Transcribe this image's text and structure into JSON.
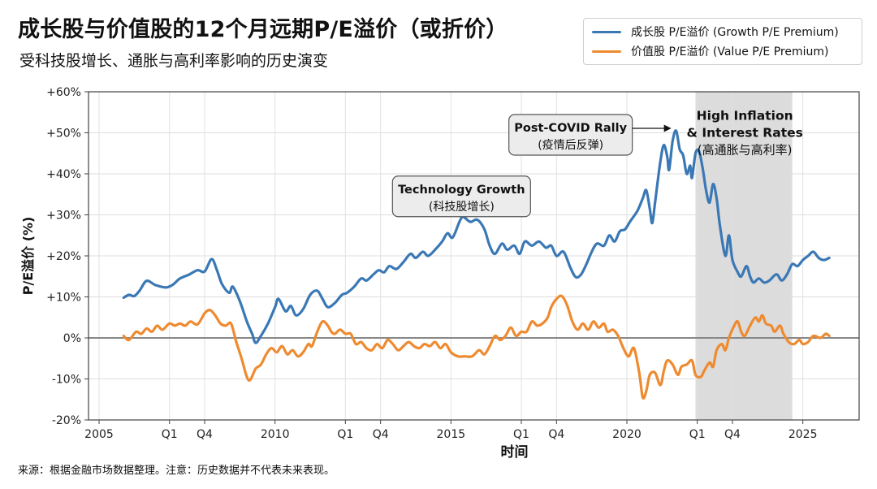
{
  "title": "成长股与价值股的12个月远期P/E溢价（或折价）",
  "subtitle": "受科技股增长、通胀与高利率影响的历史演变",
  "source": "来源：根据金融市场数据整理。注意：历史数据并不代表未来表现。",
  "colors": {
    "growth": "#3a78b5",
    "value": "#ee8a2f",
    "shade": "#dcdcdc",
    "zero": "#888888"
  },
  "chart_data": {
    "type": "line",
    "xlabel": "时间",
    "ylabel": "P/E溢价 (%)",
    "xlim": [
      2004.7,
      2026.6
    ],
    "ylim": [
      -20,
      60
    ],
    "y_ticks": [
      {
        "value": -20,
        "label": "-20%"
      },
      {
        "value": -10,
        "label": "-10%"
      },
      {
        "value": 0,
        "label": "0%"
      },
      {
        "value": 10,
        "label": "+10%"
      },
      {
        "value": 20,
        "label": "+20%"
      },
      {
        "value": 30,
        "label": "+30%"
      },
      {
        "value": 40,
        "label": "+40%"
      },
      {
        "value": 50,
        "label": "+50%"
      },
      {
        "value": 60,
        "label": "+60%"
      }
    ],
    "x_ticks": [
      {
        "x": 2005,
        "label": "2005"
      },
      {
        "x": 2007,
        "label": "Q1"
      },
      {
        "x": 2008,
        "label": "Q4"
      },
      {
        "x": 2010,
        "label": "2010"
      },
      {
        "x": 2012,
        "label": "Q1"
      },
      {
        "x": 2013,
        "label": "Q4"
      },
      {
        "x": 2015,
        "label": "2015"
      },
      {
        "x": 2017,
        "label": "Q1"
      },
      {
        "x": 2018,
        "label": "Q4"
      },
      {
        "x": 2020,
        "label": "2020"
      },
      {
        "x": 2022,
        "label": "Q1"
      },
      {
        "x": 2023,
        "label": "Q4"
      },
      {
        "x": 2025,
        "label": "2025"
      }
    ],
    "shaded_region": {
      "x0": 2021.95,
      "x1": 2024.7
    },
    "series": [
      {
        "name": "成长股 P/E溢价 (Growth P/E Premium)",
        "key": "growth",
        "points": [
          [
            2005.7,
            9.8
          ],
          [
            2005.85,
            10.5
          ],
          [
            2006.0,
            10.2
          ],
          [
            2006.15,
            11.5
          ],
          [
            2006.35,
            13.9
          ],
          [
            2006.6,
            12.9
          ],
          [
            2006.9,
            12.3
          ],
          [
            2007.1,
            13.0
          ],
          [
            2007.3,
            14.5
          ],
          [
            2007.55,
            15.4
          ],
          [
            2007.8,
            16.5
          ],
          [
            2008.0,
            16.2
          ],
          [
            2008.2,
            19.2
          ],
          [
            2008.35,
            16.5
          ],
          [
            2008.5,
            13.0
          ],
          [
            2008.7,
            11.0
          ],
          [
            2008.8,
            12.5
          ],
          [
            2009.0,
            9.0
          ],
          [
            2009.2,
            4.0
          ],
          [
            2009.35,
            1.0
          ],
          [
            2009.45,
            -1.2
          ],
          [
            2009.6,
            0.5
          ],
          [
            2009.8,
            3.5
          ],
          [
            2010.0,
            7.5
          ],
          [
            2010.1,
            9.5
          ],
          [
            2010.3,
            6.5
          ],
          [
            2010.45,
            7.8
          ],
          [
            2010.6,
            5.5
          ],
          [
            2010.8,
            7.0
          ],
          [
            2011.0,
            10.5
          ],
          [
            2011.2,
            11.5
          ],
          [
            2011.35,
            9.5
          ],
          [
            2011.5,
            7.5
          ],
          [
            2011.7,
            8.5
          ],
          [
            2011.9,
            10.5
          ],
          [
            2012.05,
            11.0
          ],
          [
            2012.25,
            12.5
          ],
          [
            2012.45,
            14.5
          ],
          [
            2012.6,
            14.0
          ],
          [
            2012.8,
            15.5
          ],
          [
            2012.95,
            16.5
          ],
          [
            2013.1,
            16.0
          ],
          [
            2013.25,
            17.5
          ],
          [
            2013.45,
            16.8
          ],
          [
            2013.65,
            18.5
          ],
          [
            2013.85,
            20.5
          ],
          [
            2014.0,
            19.5
          ],
          [
            2014.2,
            21.0
          ],
          [
            2014.35,
            20.0
          ],
          [
            2014.55,
            21.5
          ],
          [
            2014.75,
            23.5
          ],
          [
            2014.9,
            25.5
          ],
          [
            2015.05,
            24.5
          ],
          [
            2015.25,
            28.5
          ],
          [
            2015.35,
            29.5
          ],
          [
            2015.55,
            28.3
          ],
          [
            2015.75,
            28.8
          ],
          [
            2015.95,
            26.5
          ],
          [
            2016.1,
            22.5
          ],
          [
            2016.25,
            20.5
          ],
          [
            2016.45,
            23.0
          ],
          [
            2016.6,
            21.5
          ],
          [
            2016.8,
            22.5
          ],
          [
            2016.95,
            20.5
          ],
          [
            2017.1,
            23.5
          ],
          [
            2017.3,
            22.5
          ],
          [
            2017.5,
            23.5
          ],
          [
            2017.7,
            22.0
          ],
          [
            2017.85,
            22.5
          ],
          [
            2018.0,
            20.0
          ],
          [
            2018.2,
            21.0
          ],
          [
            2018.4,
            17.0
          ],
          [
            2018.55,
            14.8
          ],
          [
            2018.7,
            15.5
          ],
          [
            2018.85,
            18.0
          ],
          [
            2019.0,
            21.0
          ],
          [
            2019.15,
            23.0
          ],
          [
            2019.35,
            22.5
          ],
          [
            2019.5,
            25.0
          ],
          [
            2019.65,
            23.5
          ],
          [
            2019.8,
            26.0
          ],
          [
            2019.95,
            26.5
          ],
          [
            2020.1,
            28.5
          ],
          [
            2020.3,
            31.0
          ],
          [
            2020.45,
            34.0
          ],
          [
            2020.55,
            36.0
          ],
          [
            2020.65,
            31.5
          ],
          [
            2020.72,
            28.0
          ],
          [
            2020.8,
            33.0
          ],
          [
            2020.95,
            43.0
          ],
          [
            2021.05,
            47.0
          ],
          [
            2021.15,
            44.0
          ],
          [
            2021.2,
            41.0
          ],
          [
            2021.3,
            48.0
          ],
          [
            2021.4,
            50.5
          ],
          [
            2021.5,
            46.0
          ],
          [
            2021.6,
            44.5
          ],
          [
            2021.7,
            40.0
          ],
          [
            2021.8,
            42.0
          ],
          [
            2021.85,
            39.0
          ],
          [
            2021.95,
            45.0
          ],
          [
            2022.05,
            45.5
          ],
          [
            2022.15,
            41.5
          ],
          [
            2022.25,
            36.0
          ],
          [
            2022.35,
            33.0
          ],
          [
            2022.45,
            37.5
          ],
          [
            2022.55,
            34.0
          ],
          [
            2022.65,
            27.0
          ],
          [
            2022.8,
            20.0
          ],
          [
            2022.9,
            25.0
          ],
          [
            2023.0,
            19.0
          ],
          [
            2023.15,
            16.0
          ],
          [
            2023.25,
            15.0
          ],
          [
            2023.4,
            17.5
          ],
          [
            2023.5,
            15.0
          ],
          [
            2023.6,
            13.5
          ],
          [
            2023.75,
            14.5
          ],
          [
            2023.9,
            13.5
          ],
          [
            2024.05,
            14.0
          ],
          [
            2024.25,
            15.5
          ],
          [
            2024.4,
            14.0
          ],
          [
            2024.55,
            15.5
          ],
          [
            2024.7,
            18.0
          ],
          [
            2024.85,
            17.5
          ],
          [
            2025.0,
            19.0
          ],
          [
            2025.15,
            20.0
          ],
          [
            2025.3,
            21.0
          ],
          [
            2025.45,
            19.5
          ],
          [
            2025.6,
            19.0
          ],
          [
            2025.75,
            19.5
          ]
        ]
      },
      {
        "name": "价值股 P/E溢价 (Value P/E Premium)",
        "key": "value",
        "points": [
          [
            2005.7,
            0.5
          ],
          [
            2005.85,
            -0.5
          ],
          [
            2006.05,
            1.5
          ],
          [
            2006.2,
            1.0
          ],
          [
            2006.35,
            2.3
          ],
          [
            2006.5,
            1.5
          ],
          [
            2006.65,
            3.0
          ],
          [
            2006.8,
            2.0
          ],
          [
            2007.0,
            3.5
          ],
          [
            2007.15,
            3.0
          ],
          [
            2007.3,
            3.5
          ],
          [
            2007.45,
            3.0
          ],
          [
            2007.6,
            4.0
          ],
          [
            2007.8,
            3.3
          ],
          [
            2008.0,
            6.0
          ],
          [
            2008.15,
            6.8
          ],
          [
            2008.3,
            5.5
          ],
          [
            2008.45,
            3.5
          ],
          [
            2008.6,
            3.0
          ],
          [
            2008.75,
            3.5
          ],
          [
            2008.9,
            -1.0
          ],
          [
            2009.05,
            -5.0
          ],
          [
            2009.2,
            -9.5
          ],
          [
            2009.3,
            -10.2
          ],
          [
            2009.45,
            -7.5
          ],
          [
            2009.6,
            -6.5
          ],
          [
            2009.75,
            -4.0
          ],
          [
            2009.9,
            -2.5
          ],
          [
            2010.05,
            -3.5
          ],
          [
            2010.2,
            -2.0
          ],
          [
            2010.35,
            -4.0
          ],
          [
            2010.5,
            -3.0
          ],
          [
            2010.65,
            -4.5
          ],
          [
            2010.8,
            -3.5
          ],
          [
            2010.95,
            -1.5
          ],
          [
            2011.05,
            -2.0
          ],
          [
            2011.2,
            1.5
          ],
          [
            2011.35,
            4.0
          ],
          [
            2011.5,
            3.0
          ],
          [
            2011.6,
            1.5
          ],
          [
            2011.7,
            1.0
          ],
          [
            2011.85,
            2.0
          ],
          [
            2012.0,
            1.0
          ],
          [
            2012.15,
            1.0
          ],
          [
            2012.3,
            -1.5
          ],
          [
            2012.45,
            -1.0
          ],
          [
            2012.6,
            -2.5
          ],
          [
            2012.75,
            -3.0
          ],
          [
            2012.9,
            -1.5
          ],
          [
            2013.05,
            -2.5
          ],
          [
            2013.2,
            -0.5
          ],
          [
            2013.35,
            -1.5
          ],
          [
            2013.5,
            -3.0
          ],
          [
            2013.65,
            -2.0
          ],
          [
            2013.8,
            -1.0
          ],
          [
            2013.95,
            -2.0
          ],
          [
            2014.1,
            -2.5
          ],
          [
            2014.25,
            -1.5
          ],
          [
            2014.4,
            -2.0
          ],
          [
            2014.55,
            -1.0
          ],
          [
            2014.7,
            -2.5
          ],
          [
            2014.85,
            -1.5
          ],
          [
            2015.0,
            -3.5
          ],
          [
            2015.2,
            -4.5
          ],
          [
            2015.4,
            -4.5
          ],
          [
            2015.6,
            -4.5
          ],
          [
            2015.8,
            -3.0
          ],
          [
            2015.95,
            -4.0
          ],
          [
            2016.1,
            -2.0
          ],
          [
            2016.25,
            0.5
          ],
          [
            2016.4,
            -0.5
          ],
          [
            2016.55,
            0.5
          ],
          [
            2016.7,
            2.5
          ],
          [
            2016.85,
            0.5
          ],
          [
            2017.0,
            1.5
          ],
          [
            2017.15,
            1.5
          ],
          [
            2017.3,
            4.0
          ],
          [
            2017.45,
            3.0
          ],
          [
            2017.6,
            3.5
          ],
          [
            2017.75,
            5.0
          ],
          [
            2017.85,
            7.5
          ],
          [
            2018.0,
            9.5
          ],
          [
            2018.15,
            10.2
          ],
          [
            2018.3,
            8.0
          ],
          [
            2018.45,
            4.0
          ],
          [
            2018.6,
            2.0
          ],
          [
            2018.75,
            3.5
          ],
          [
            2018.9,
            2.0
          ],
          [
            2019.05,
            4.0
          ],
          [
            2019.2,
            2.5
          ],
          [
            2019.35,
            3.5
          ],
          [
            2019.45,
            1.5
          ],
          [
            2019.6,
            2.0
          ],
          [
            2019.75,
            0.5
          ],
          [
            2019.9,
            -2.5
          ],
          [
            2020.05,
            -4.5
          ],
          [
            2020.2,
            -2.5
          ],
          [
            2020.35,
            -8.5
          ],
          [
            2020.45,
            -14.5
          ],
          [
            2020.55,
            -13.0
          ],
          [
            2020.65,
            -9.0
          ],
          [
            2020.8,
            -8.5
          ],
          [
            2020.95,
            -11.5
          ],
          [
            2021.05,
            -8.0
          ],
          [
            2021.15,
            -5.5
          ],
          [
            2021.3,
            -6.5
          ],
          [
            2021.45,
            -9.0
          ],
          [
            2021.55,
            -7.0
          ],
          [
            2021.7,
            -6.5
          ],
          [
            2021.85,
            -5.5
          ],
          [
            2021.95,
            -9.0
          ],
          [
            2022.1,
            -9.5
          ],
          [
            2022.2,
            -8.0
          ],
          [
            2022.35,
            -6.0
          ],
          [
            2022.45,
            -7.0
          ],
          [
            2022.55,
            -3.0
          ],
          [
            2022.7,
            -1.5
          ],
          [
            2022.8,
            -3.0
          ],
          [
            2022.9,
            0.0
          ],
          [
            2023.05,
            3.0
          ],
          [
            2023.15,
            4.0
          ],
          [
            2023.25,
            1.5
          ],
          [
            2023.35,
            0.5
          ],
          [
            2023.5,
            3.0
          ],
          [
            2023.65,
            5.0
          ],
          [
            2023.75,
            4.0
          ],
          [
            2023.85,
            5.5
          ],
          [
            2023.95,
            3.5
          ],
          [
            2024.1,
            3.0
          ],
          [
            2024.2,
            1.5
          ],
          [
            2024.35,
            3.0
          ],
          [
            2024.45,
            1.0
          ],
          [
            2024.6,
            -1.0
          ],
          [
            2024.75,
            -1.5
          ],
          [
            2024.9,
            -0.5
          ],
          [
            2025.0,
            -1.5
          ],
          [
            2025.15,
            -1.0
          ],
          [
            2025.3,
            0.5
          ],
          [
            2025.5,
            0.0
          ],
          [
            2025.65,
            1.0
          ],
          [
            2025.75,
            0.5
          ]
        ]
      }
    ],
    "annotations": [
      {
        "id": "tech",
        "title": "Technology Growth",
        "subtitle": "(科技股增长)",
        "boxed": true,
        "x": 2015.3,
        "y": 34.5
      },
      {
        "id": "covid",
        "title": "Post-COVID Rally",
        "subtitle": "(疫情后反弹)",
        "boxed": true,
        "x": 2018.4,
        "y": 49.5,
        "arrow_to": [
          2021.4,
          50.5
        ]
      },
      {
        "id": "inflation",
        "title": "High Inflation",
        "title2": "& Interest Rates",
        "subtitle": "(高通胀与高利率)",
        "boxed": false,
        "x": 2023.35,
        "y": 52.0
      }
    ]
  }
}
